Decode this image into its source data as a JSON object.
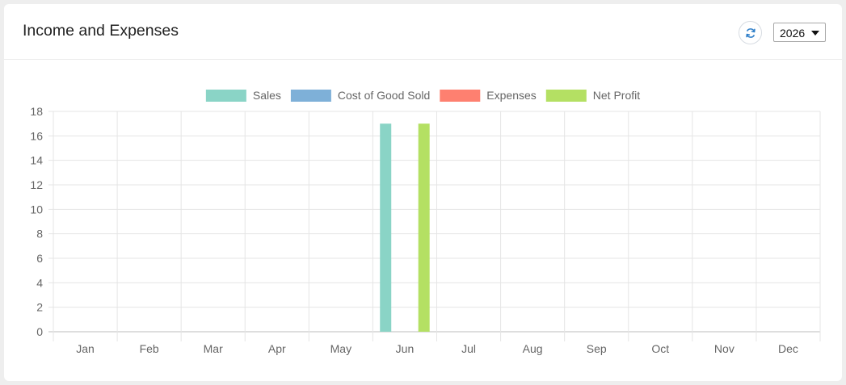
{
  "card": {
    "title": "Income and Expenses",
    "refresh_icon": "refresh-icon",
    "year_select": {
      "value": "2026",
      "icon": "caret-down-icon"
    }
  },
  "chart_data": {
    "type": "bar",
    "categories": [
      "Jan",
      "Feb",
      "Mar",
      "Apr",
      "May",
      "Jun",
      "Jul",
      "Aug",
      "Sep",
      "Oct",
      "Nov",
      "Dec"
    ],
    "series": [
      {
        "name": "Sales",
        "color": "#8ad4c6",
        "values": [
          0,
          0,
          0,
          0,
          0,
          17,
          0,
          0,
          0,
          0,
          0,
          0
        ]
      },
      {
        "name": "Cost of Good Sold",
        "color": "#7eb0d8",
        "values": [
          0,
          0,
          0,
          0,
          0,
          0,
          0,
          0,
          0,
          0,
          0,
          0
        ]
      },
      {
        "name": "Expenses",
        "color": "#fe8070",
        "values": [
          0,
          0,
          0,
          0,
          0,
          0,
          0,
          0,
          0,
          0,
          0,
          0
        ]
      },
      {
        "name": "Net Profit",
        "color": "#b4e063",
        "values": [
          0,
          0,
          0,
          0,
          0,
          17,
          0,
          0,
          0,
          0,
          0,
          0
        ]
      }
    ],
    "ylim": [
      0,
      18
    ],
    "yticks": [
      "0",
      "2",
      "4",
      "6",
      "8",
      "10",
      "12",
      "14",
      "16",
      "18"
    ],
    "grid": true,
    "legend": "top-center"
  }
}
